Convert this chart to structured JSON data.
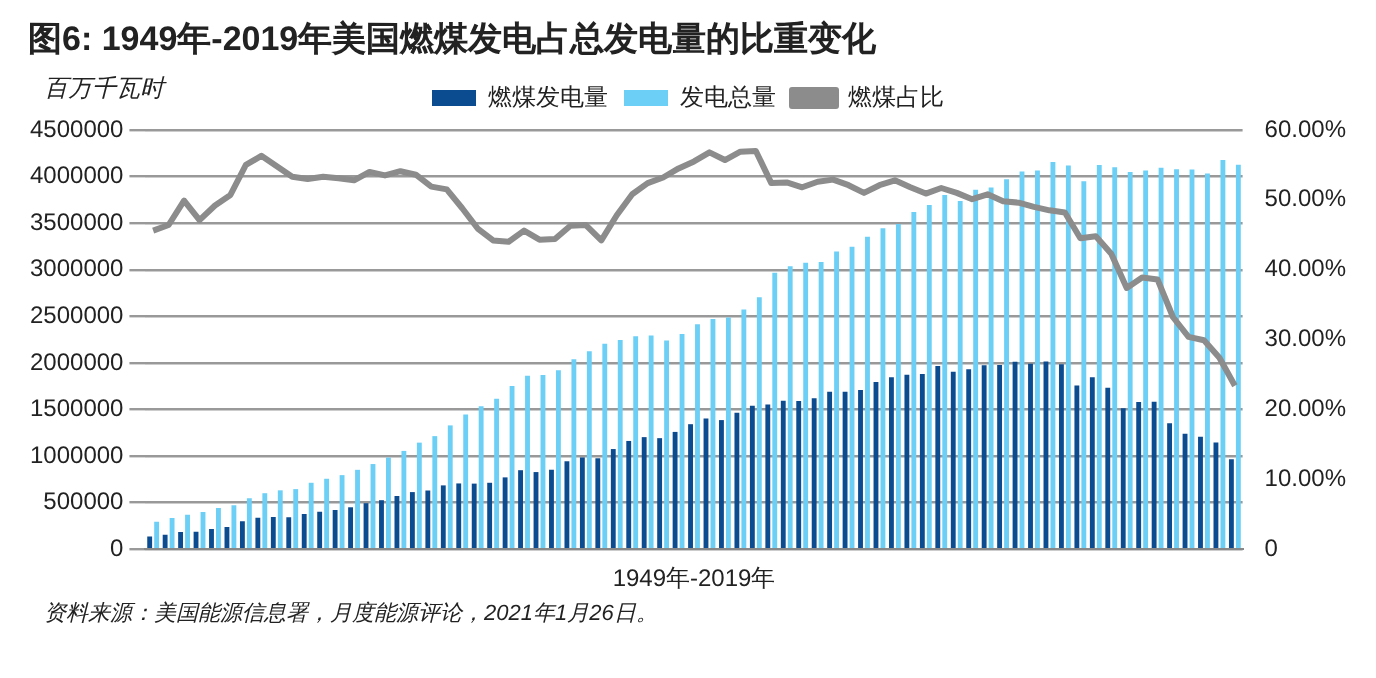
{
  "chart_data": {
    "type": "bar",
    "title": "图6: 1949年-2019年美国燃煤发电占总发电量的比重变化",
    "ylabel": "百万千瓦时",
    "xlabel": "1949年-2019年",
    "annotations": [
      "资料来源：美国能源信息署，月度能源评论，2021年1月26日。"
    ],
    "categories": [
      null,
      null,
      null,
      null,
      null,
      null,
      null,
      null,
      null,
      null,
      null,
      null,
      null,
      null,
      null,
      null,
      null,
      null,
      null,
      null,
      null,
      null,
      null,
      null,
      null,
      null,
      null,
      null,
      null,
      null,
      null,
      null,
      null,
      null,
      null,
      null,
      null,
      null,
      null,
      null,
      null,
      null,
      null,
      null,
      null,
      null,
      null,
      null,
      null,
      null,
      null,
      null,
      null,
      null,
      null,
      null,
      null,
      null,
      null,
      null,
      null,
      null,
      null,
      null,
      null,
      null,
      null,
      null,
      null,
      null,
      null
    ],
    "series": [
      {
        "name": "燃煤发电量",
        "color": "#0b4b8f",
        "values": [
          135000,
          155000,
          185000,
          188000,
          218000,
          239000,
          301000,
          338000,
          346000,
          344000,
          378000,
          403000,
          422000,
          450000,
          494000,
          526000,
          571000,
          613000,
          630000,
          685000,
          706000,
          704000,
          713000,
          771000,
          848000,
          828000,
          853000,
          944000,
          985000,
          976000,
          1075000,
          1162000,
          1203000,
          1192000,
          1259000,
          1342000,
          1402000,
          1386000,
          1464000,
          1541000,
          1554000,
          1594000,
          1592000,
          1621000,
          1690000,
          1691000,
          1709000,
          1796000,
          1845000,
          1874000,
          1881000,
          1966000,
          1904000,
          1933000,
          1974000,
          1978000,
          2013000,
          1991000,
          2016000,
          1986000,
          1756000,
          1847000,
          1733000,
          1514000,
          1581000,
          1582000,
          1352000,
          1239000,
          1206000,
          1146000,
          965000
        ]
      },
      {
        "name": "发电总量",
        "color": "#6ccff6",
        "values": [
          296000,
          334000,
          371000,
          399000,
          443000,
          472000,
          547000,
          601000,
          632000,
          645000,
          713000,
          756000,
          795000,
          852000,
          914000,
          984000,
          1055000,
          1144000,
          1214000,
          1329000,
          1446000,
          1535000,
          1614000,
          1751000,
          1861000,
          1870000,
          1921000,
          2038000,
          2124000,
          2206000,
          2247000,
          2286000,
          2295000,
          2241000,
          2310000,
          2416000,
          2470000,
          2487000,
          2572000,
          2704000,
          2967000,
          3038000,
          3074000,
          3084000,
          3197000,
          3248000,
          3354000,
          3444000,
          3492000,
          3620000,
          3695000,
          3802000,
          3737000,
          3859000,
          3883000,
          3971000,
          4055000,
          4065000,
          4157000,
          4119000,
          3950000,
          4125000,
          4100000,
          4048000,
          4066000,
          4094000,
          4078000,
          4077000,
          4034000,
          4178000,
          4127000
        ]
      },
      {
        "name": "燃煤占比",
        "type": "line",
        "axis": "y2",
        "color": "#8c8c8c",
        "values": [
          45.6,
          46.4,
          49.9,
          47.1,
          49.2,
          50.7,
          55.0,
          56.3,
          54.8,
          53.3,
          53.0,
          53.3,
          53.1,
          52.8,
          54.0,
          53.5,
          54.1,
          53.6,
          51.9,
          51.5,
          48.8,
          45.9,
          44.2,
          44.0,
          45.6,
          44.3,
          44.4,
          46.3,
          46.4,
          44.2,
          47.8,
          50.8,
          52.4,
          53.2,
          54.5,
          55.5,
          56.8,
          55.7,
          56.9,
          57.0,
          52.4,
          52.5,
          51.8,
          52.6,
          52.9,
          52.1,
          51.0,
          52.1,
          52.8,
          51.8,
          50.9,
          51.7,
          51.0,
          50.1,
          50.8,
          49.8,
          49.6,
          49.0,
          48.5,
          48.2,
          44.5,
          44.8,
          42.3,
          37.4,
          38.9,
          38.6,
          33.2,
          30.4,
          29.9,
          27.4,
          23.4
        ]
      }
    ],
    "ylim": [
      0,
      4500000
    ],
    "yticks": [
      0,
      500000,
      1000000,
      1500000,
      2000000,
      2500000,
      3000000,
      3500000,
      4000000,
      4500000
    ],
    "y2lim": [
      0,
      60
    ],
    "y2ticks": [
      {
        "value": 0,
        "label": "0"
      },
      {
        "value": 10,
        "label": "10.00%"
      },
      {
        "value": 20,
        "label": "20.00%"
      },
      {
        "value": 30,
        "label": "30.00%"
      },
      {
        "value": 40,
        "label": "40.00%"
      },
      {
        "value": 50,
        "label": "50.00%"
      },
      {
        "value": 60,
        "label": "60.00%"
      }
    ],
    "grid": "y",
    "legend": "top",
    "marker": "none",
    "line_style": "solid"
  }
}
